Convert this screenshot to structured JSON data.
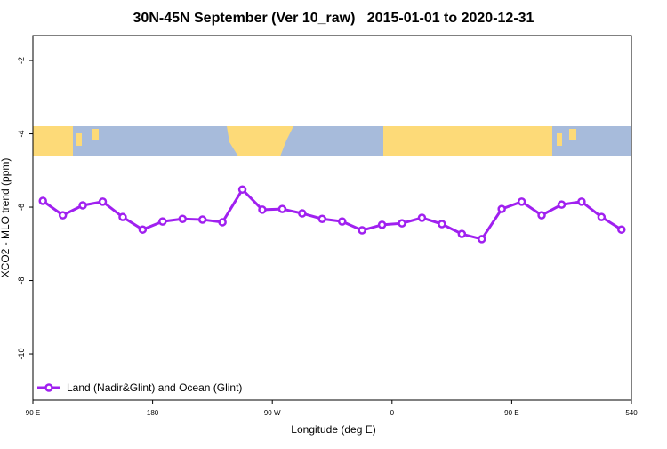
{
  "chart_data": {
    "type": "line",
    "title": "30N-45N September (Ver 10_raw)   2015-01-01 to 2020-12-31",
    "x_label": "Longitude (deg E)",
    "y_label": "XCO2 - MLO trend (ppm)",
    "x": [
      97.5,
      112.5,
      127.5,
      142.5,
      157.5,
      172.5,
      187.5,
      202.5,
      217.5,
      232.5,
      247.5,
      262.5,
      277.5,
      292.5,
      307.5,
      322.5,
      337.5,
      352.5,
      367.5,
      382.5,
      397.5,
      412.5,
      427.5,
      442.5,
      457.5,
      472.5,
      487.5,
      502.5,
      517.5,
      532.5
    ],
    "series": [
      {
        "name": "Land (Nadir&Glint) and Ocean (Glint)",
        "color": "#a020f0",
        "values": [
          -5.83,
          -6.22,
          -5.95,
          -5.85,
          -6.27,
          -6.61,
          -6.39,
          -6.32,
          -6.34,
          -6.41,
          -5.52,
          -6.07,
          -6.05,
          -6.17,
          -6.32,
          -6.39,
          -6.63,
          -6.48,
          -6.44,
          -6.29,
          -6.46,
          -6.73,
          -6.87,
          -6.05,
          -5.85,
          -6.22,
          -5.93,
          -5.85,
          -6.27,
          -6.61
        ]
      }
    ],
    "xlim": [
      90,
      540
    ],
    "xticks": [
      {
        "value": 90,
        "label": "90 E"
      },
      180,
      {
        "value": 270,
        "label": "90 W"
      },
      {
        "value": 360,
        "label": "0"
      },
      {
        "value": 450,
        "label": "90 E"
      },
      540
    ],
    "ylim": [
      -11.26,
      -1.32
    ],
    "yticks": [
      -10,
      -8,
      -6,
      -4,
      -2
    ],
    "grid": false,
    "legend": "bottom-left"
  }
}
